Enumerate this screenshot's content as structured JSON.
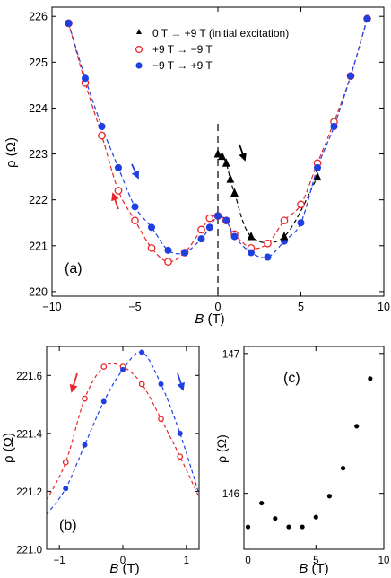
{
  "chart_data": [
    {
      "id": "a",
      "type": "scatter",
      "panel_label": "(a)",
      "xlabel_italic": "B",
      "xlabel_unit": " (T)",
      "ylabel": "ρ (Ω)",
      "xlim": [
        -10,
        10
      ],
      "ylim": [
        219.9,
        226.2
      ],
      "xticks": [
        -10,
        -5,
        0,
        5,
        10
      ],
      "yticks": [
        220,
        221,
        222,
        223,
        224,
        225,
        226
      ],
      "grid": false,
      "legend_position": "top-right",
      "vline_x": 0,
      "series": [
        {
          "key": "init",
          "name": "0 T → +9 T (initial excitation)",
          "marker": "triangle",
          "color": "#000000",
          "filled": true,
          "points": [
            [
              0,
              223.0
            ],
            [
              0.25,
              222.95
            ],
            [
              0.5,
              222.8
            ],
            [
              0.75,
              222.45
            ],
            [
              1.0,
              222.15
            ],
            [
              2.0,
              221.2
            ],
            [
              4.0,
              221.2
            ],
            [
              6.0,
              222.5
            ]
          ]
        },
        {
          "key": "down",
          "name": "+9 T → −9 T",
          "marker": "circle-open",
          "color": "#e8262a",
          "filled": false,
          "points": [
            [
              9,
              225.95
            ],
            [
              8,
              224.7
            ],
            [
              7,
              223.7
            ],
            [
              6,
              222.8
            ],
            [
              5,
              221.9
            ],
            [
              4,
              221.55
            ],
            [
              3,
              221.05
            ],
            [
              2,
              220.95
            ],
            [
              1,
              221.25
            ],
            [
              0.5,
              221.55
            ],
            [
              0,
              221.65
            ],
            [
              -0.5,
              221.6
            ],
            [
              -1,
              221.35
            ],
            [
              -2,
              220.85
            ],
            [
              -3,
              220.65
            ],
            [
              -4,
              220.95
            ],
            [
              -5,
              221.55
            ],
            [
              -6,
              222.2
            ],
            [
              -7,
              223.4
            ],
            [
              -8,
              224.55
            ],
            [
              -9,
              225.85
            ]
          ]
        },
        {
          "key": "up",
          "name": "−9 T → +9 T",
          "marker": "circle-filled",
          "color": "#1f3fe0",
          "filled": true,
          "points": [
            [
              -9,
              225.85
            ],
            [
              -8,
              224.65
            ],
            [
              -7,
              223.6
            ],
            [
              -6,
              222.7
            ],
            [
              -5,
              221.85
            ],
            [
              -4,
              221.4
            ],
            [
              -3,
              220.9
            ],
            [
              -2,
              220.85
            ],
            [
              -1,
              221.15
            ],
            [
              -0.5,
              221.4
            ],
            [
              0,
              221.65
            ],
            [
              0.5,
              221.55
            ],
            [
              1,
              221.2
            ],
            [
              2,
              220.85
            ],
            [
              3,
              220.75
            ],
            [
              4,
              221.1
            ],
            [
              5,
              221.5
            ],
            [
              6,
              222.7
            ],
            [
              7,
              223.6
            ],
            [
              8,
              224.7
            ],
            [
              9,
              225.95
            ]
          ]
        }
      ]
    },
    {
      "id": "b",
      "type": "scatter",
      "panel_label": "(b)",
      "xlabel_italic": "B",
      "xlabel_unit": " (T)",
      "ylabel": "ρ (Ω)",
      "xlim": [
        -1.2,
        1.2
      ],
      "ylim": [
        221.0,
        221.7
      ],
      "xticks": [
        -1,
        0,
        1
      ],
      "yticks": [
        221.0,
        221.2,
        221.4,
        221.6
      ],
      "grid": false,
      "series": [
        {
          "key": "down",
          "marker": "circle-open",
          "color": "#e8262a",
          "filled": false,
          "points": [
            [
              0.9,
              221.32
            ],
            [
              0.6,
              221.45
            ],
            [
              0.3,
              221.57
            ],
            [
              0.0,
              221.63
            ],
            [
              -0.3,
              221.63
            ],
            [
              -0.6,
              221.52
            ],
            [
              -0.9,
              221.3
            ]
          ]
        },
        {
          "key": "up",
          "marker": "circle-filled",
          "color": "#1f3fe0",
          "filled": true,
          "points": [
            [
              -0.9,
              221.21
            ],
            [
              -0.6,
              221.36
            ],
            [
              -0.3,
              221.51
            ],
            [
              0.0,
              221.62
            ],
            [
              0.3,
              221.68
            ],
            [
              0.6,
              221.57
            ],
            [
              0.9,
              221.4
            ]
          ]
        }
      ]
    },
    {
      "id": "c",
      "type": "scatter",
      "panel_label": "(c)",
      "xlabel_italic": "B",
      "xlabel_unit": " (T)",
      "ylabel": "ρ (Ω)",
      "xlim": [
        -0.3,
        10
      ],
      "ylim": [
        145.6,
        147.05
      ],
      "xticks": [
        0,
        5,
        10
      ],
      "yticks": [
        146,
        147
      ],
      "grid": false,
      "series": [
        {
          "key": "c",
          "marker": "circle-filled",
          "color": "#000000",
          "filled": true,
          "points": [
            [
              0,
              145.76
            ],
            [
              1,
              145.93
            ],
            [
              2,
              145.82
            ],
            [
              3,
              145.76
            ],
            [
              4,
              145.76
            ],
            [
              5,
              145.83
            ],
            [
              6,
              145.98
            ],
            [
              7,
              146.18
            ],
            [
              8,
              146.48
            ],
            [
              9,
              146.82
            ]
          ]
        }
      ]
    }
  ]
}
